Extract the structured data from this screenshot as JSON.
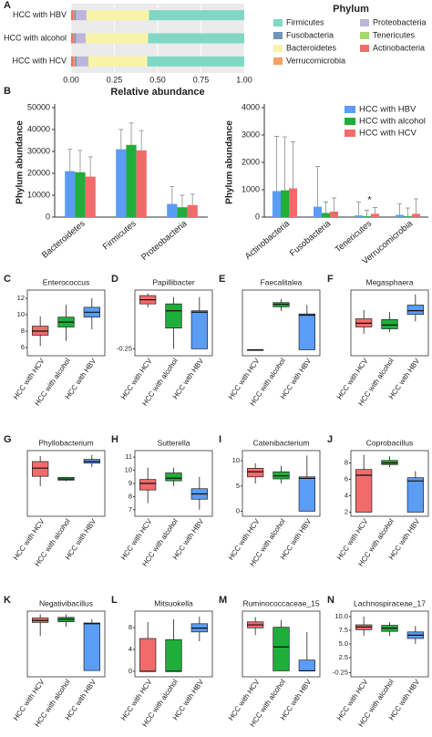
{
  "chart_data": [
    {
      "type": "bar",
      "stacked": true,
      "orientation": "horizontal",
      "panel": "A",
      "categories": [
        "HCC with HBV",
        "HCC with alcohol",
        "HCC with HCV"
      ],
      "series": [
        {
          "name": "Firmicutes",
          "color": "#7fd8c3",
          "values": [
            0.55,
            0.555,
            0.56
          ]
        },
        {
          "name": "Fusobacteria",
          "color": "#6f97b8",
          "values": [
            0.01,
            0.01,
            0.01
          ]
        },
        {
          "name": "Bacteroidetes",
          "color": "#f7f4a8",
          "values": [
            0.36,
            0.36,
            0.34
          ]
        },
        {
          "name": "Verrucomicrobia",
          "color": "#f4a261",
          "values": [
            0.005,
            0.005,
            0.01
          ]
        },
        {
          "name": "Proteobacteria",
          "color": "#bdb5db",
          "values": [
            0.06,
            0.055,
            0.065
          ]
        },
        {
          "name": "Tenericutes",
          "color": "#a6d96a",
          "values": [
            0.002,
            0.002,
            0.002
          ]
        },
        {
          "name": "Actinobacteria",
          "color": "#ef6f6c",
          "values": [
            0.013,
            0.013,
            0.013
          ]
        }
      ],
      "xlim": [
        0,
        1
      ],
      "xticks": [
        {
          "value": 0,
          "label": "0.00"
        },
        {
          "value": 0.25,
          "label": "0.25"
        },
        {
          "value": 0.5,
          "label": "0.50"
        },
        {
          "value": 0.75,
          "label": "0.75"
        },
        {
          "value": 1,
          "label": "1.00"
        }
      ],
      "xlabel": "Relative abundance",
      "legend_title": "Phylum",
      "background": "#ebebeb"
    },
    {
      "type": "bar",
      "panel": "B",
      "categories": [
        "Bacteroidetes",
        "Firmicutes",
        "Proteobacteria"
      ],
      "series": [
        {
          "name": "HCC with HBV",
          "color": "#5b9cf4",
          "values": [
            21000,
            31000,
            6000
          ],
          "errors": [
            10000,
            9000,
            8000
          ]
        },
        {
          "name": "HCC with alcohol",
          "color": "#1fae3a",
          "values": [
            20500,
            33000,
            4500
          ],
          "errors": [
            10000,
            10000,
            5500
          ]
        },
        {
          "name": "HCC with HCV",
          "color": "#f26b6b",
          "values": [
            18500,
            30500,
            5500
          ],
          "errors": [
            9000,
            9000,
            5000
          ]
        }
      ],
      "ylim": [
        0,
        50000
      ],
      "yticks": [
        0,
        10000,
        20000,
        30000,
        40000,
        50000
      ],
      "ylabel": "Phylum abundance"
    },
    {
      "type": "bar",
      "categories": [
        "Actinobacteria",
        "Fusobacteria",
        "Tenericutes",
        "Verrucomicrobia"
      ],
      "series": [
        {
          "name": "HCC with HBV",
          "color": "#5b9cf4",
          "values": [
            950,
            380,
            60,
            80
          ],
          "errors": [
            2000,
            1470,
            490,
            400
          ]
        },
        {
          "name": "HCC with alcohol",
          "color": "#1fae3a",
          "values": [
            980,
            150,
            30,
            30
          ],
          "errors": [
            1950,
            400,
            220,
            300
          ]
        },
        {
          "name": "HCC with HCV",
          "color": "#f26b6b",
          "values": [
            1050,
            200,
            120,
            120
          ],
          "errors": [
            1700,
            500,
            230,
            550
          ]
        }
      ],
      "ylim": [
        0,
        4000
      ],
      "yticks": [
        0,
        1000,
        2000,
        3000,
        4000
      ],
      "ylabel": "Phylum abundance",
      "legend": "upper right",
      "annotations": [
        {
          "text": "*"
        }
      ]
    },
    {
      "type": "box",
      "panel": "C",
      "title": "Enterococcus",
      "categories": [
        "HCC with HCV",
        "HCC with alcohol",
        "HCC with HBV"
      ],
      "colors": [
        "#f26b6b",
        "#1fae3a",
        "#5b9cf4"
      ],
      "boxes": [
        {
          "min": 6.2,
          "q1": 7.5,
          "median": 8.0,
          "q3": 8.6,
          "max": 9.8
        },
        {
          "min": 6.8,
          "q1": 8.5,
          "median": 9.1,
          "q3": 9.7,
          "max": 11.2
        },
        {
          "min": 8.2,
          "q1": 9.7,
          "median": 10.3,
          "q3": 10.9,
          "max": 12.0
        }
      ],
      "ylim": [
        5,
        13
      ],
      "yticks": [
        6,
        8,
        10,
        12
      ]
    },
    {
      "type": "box",
      "panel": "D",
      "title": "Papillibacter",
      "categories": [
        "HCC with HCV",
        "HCC with alcohol",
        "HCC with HBV"
      ],
      "colors": [
        "#f26b6b",
        "#1fae3a",
        "#5b9cf4"
      ],
      "boxes": [
        {
          "min": 0.35,
          "q1": 0.4,
          "median": 0.46,
          "q3": 0.52,
          "max": 0.55
        },
        {
          "min": -0.25,
          "q1": 0.05,
          "median": 0.3,
          "q3": 0.4,
          "max": 0.5
        },
        {
          "min": -0.25,
          "q1": -0.25,
          "median": 0.28,
          "q3": 0.3,
          "max": 0.5
        }
      ],
      "ylim": [
        -0.35,
        0.6
      ],
      "yticks": [
        -0.25
      ]
    },
    {
      "type": "box",
      "panel": "E",
      "title": "Faecalitalea",
      "categories": [
        "HCC with HCV",
        "HCC with alcohol",
        "HCC with HBV"
      ],
      "colors": [
        "#f26b6b",
        "#1fae3a",
        "#5b9cf4"
      ],
      "boxes": [
        {
          "min": 0,
          "q1": 0,
          "median": 0,
          "q3": 0,
          "max": 0
        },
        {
          "min": 6.5,
          "q1": 7.2,
          "median": 7.6,
          "q3": 7.9,
          "max": 8.5
        },
        {
          "min": 0,
          "q1": 0,
          "median": 5.8,
          "q3": 6.0,
          "max": 7.5
        }
      ],
      "ylim": [
        -1,
        10
      ]
    },
    {
      "type": "box",
      "panel": "F",
      "title": "Megasphaera",
      "categories": [
        "HCC with HCV",
        "HCC with alcohol",
        "HCC with HBV"
      ],
      "colors": [
        "#f26b6b",
        "#1fae3a",
        "#5b9cf4"
      ],
      "boxes": [
        {
          "min": 5.5,
          "q1": 6.6,
          "median": 7.2,
          "q3": 7.9,
          "max": 9.3
        },
        {
          "min": 5.8,
          "q1": 6.3,
          "median": 6.9,
          "q3": 7.8,
          "max": 9.0
        },
        {
          "min": 7.5,
          "q1": 8.6,
          "median": 9.2,
          "q3": 10.1,
          "max": 11.8
        }
      ],
      "ylim": [
        2,
        12.5
      ]
    },
    {
      "type": "box",
      "panel": "G",
      "title": "Phyllobacterium",
      "categories": [
        "HCC with HCV",
        "HCC with alcohol",
        "HCC with HBV"
      ],
      "colors": [
        "#f26b6b",
        "#1fae3a",
        "#5b9cf4"
      ],
      "boxes": [
        {
          "min": 5.5,
          "q1": 7.3,
          "median": 8.8,
          "q3": 10.0,
          "max": 11.0
        },
        {
          "min": 6.4,
          "q1": 6.6,
          "median": 6.8,
          "q3": 7.1,
          "max": 7.2
        },
        {
          "min": 9.0,
          "q1": 9.7,
          "median": 10.0,
          "q3": 10.4,
          "max": 11.2
        }
      ],
      "ylim": [
        0,
        12
      ]
    },
    {
      "type": "box",
      "panel": "H",
      "title": "Sutterella",
      "categories": [
        "HCC with HCV",
        "HCC with alcohol",
        "HCC with HBV"
      ],
      "colors": [
        "#f26b6b",
        "#1fae3a",
        "#5b9cf4"
      ],
      "boxes": [
        {
          "min": 7.5,
          "q1": 8.5,
          "median": 9.0,
          "q3": 9.3,
          "max": 10.2
        },
        {
          "min": 8.8,
          "q1": 9.2,
          "median": 9.4,
          "q3": 9.8,
          "max": 10.2
        },
        {
          "min": 7.0,
          "q1": 7.8,
          "median": 8.2,
          "q3": 8.6,
          "max": 9.5
        }
      ],
      "ylim": [
        6.5,
        11.5
      ],
      "yticks": [
        7,
        8,
        9,
        10,
        11
      ]
    },
    {
      "type": "box",
      "panel": "I",
      "title": "Catenibacterium",
      "categories": [
        "HCC with HCV",
        "HCC with alcohol",
        "HCC with HBV"
      ],
      "colors": [
        "#f26b6b",
        "#1fae3a",
        "#5b9cf4"
      ],
      "boxes": [
        {
          "min": 5.5,
          "q1": 6.8,
          "median": 7.8,
          "q3": 8.5,
          "max": 9.5
        },
        {
          "min": 5.5,
          "q1": 6.4,
          "median": 7.0,
          "q3": 7.8,
          "max": 9.0
        },
        {
          "min": 0,
          "q1": 0,
          "median": 6.5,
          "q3": 6.8,
          "max": 11.0
        }
      ],
      "ylim": [
        -1,
        12
      ],
      "yticks": [
        0,
        5,
        10
      ]
    },
    {
      "type": "box",
      "panel": "J",
      "title": "Coprobacillus",
      "categories": [
        "HCC with HCV",
        "HCC with alcohol",
        "HCC with HBV"
      ],
      "colors": [
        "#f26b6b",
        "#1fae3a",
        "#5b9cf4"
      ],
      "boxes": [
        {
          "min": 2,
          "q1": 2,
          "median": 6.5,
          "q3": 7.2,
          "max": 9.0
        },
        {
          "min": 7.5,
          "q1": 7.8,
          "median": 8.0,
          "q3": 8.3,
          "max": 8.8
        },
        {
          "min": 2,
          "q1": 2,
          "median": 5.8,
          "q3": 6.2,
          "max": 7.0
        }
      ],
      "ylim": [
        1.5,
        9.5
      ],
      "yticks": [
        2,
        4,
        6,
        8
      ]
    },
    {
      "type": "box",
      "panel": "K",
      "title": "Negativibacillus",
      "categories": [
        "HCC with HCV",
        "HCC with alcohol",
        "HCC with HBV"
      ],
      "colors": [
        "#f26b6b",
        "#1fae3a",
        "#5b9cf4"
      ],
      "boxes": [
        {
          "min": 5.5,
          "q1": 7.7,
          "median": 8.0,
          "q3": 8.4,
          "max": 9.0
        },
        {
          "min": 7.0,
          "q1": 7.8,
          "median": 8.2,
          "q3": 8.5,
          "max": 9.0
        },
        {
          "min": 0,
          "q1": 0,
          "median": 7.5,
          "q3": 7.6,
          "max": 8.2
        }
      ],
      "ylim": [
        -1,
        9.5
      ]
    },
    {
      "type": "box",
      "panel": "L",
      "title": "Mitsuokella",
      "categories": [
        "HCC with HCV",
        "HCC with alcohol",
        "HCC with HBV"
      ],
      "colors": [
        "#f26b6b",
        "#1fae3a",
        "#5b9cf4"
      ],
      "boxes": [
        {
          "min": 0,
          "q1": 0,
          "median": 0,
          "q3": 6.0,
          "max": 9.0
        },
        {
          "min": 0,
          "q1": 0,
          "median": 0,
          "q3": 5.8,
          "max": 9.5
        },
        {
          "min": 5.5,
          "q1": 7.2,
          "median": 7.9,
          "q3": 8.7,
          "max": 10.0
        }
      ],
      "ylim": [
        -1,
        11
      ],
      "yticks": [
        0,
        4,
        8
      ]
    },
    {
      "type": "box",
      "panel": "M",
      "title": "Ruminococcaceae_15",
      "categories": [
        "HCC with HCV",
        "HCC with alcohol",
        "HCC with HBV"
      ],
      "colors": [
        "#f26b6b",
        "#1fae3a",
        "#5b9cf4"
      ],
      "boxes": [
        {
          "min": 6.0,
          "q1": 7.2,
          "median": 7.7,
          "q3": 8.2,
          "max": 9.0
        },
        {
          "min": 0,
          "q1": 0,
          "median": 4.0,
          "q3": 7.3,
          "max": 8.5
        },
        {
          "min": 0,
          "q1": 0,
          "median": 0,
          "q3": 1.8,
          "max": 6.5
        }
      ],
      "ylim": [
        -1,
        10
      ]
    },
    {
      "type": "box",
      "panel": "N",
      "title": "Lachnospiraceae_17",
      "categories": [
        "HCC with HCV",
        "HCC with alcohol",
        "HCC with HBV"
      ],
      "colors": [
        "#f26b6b",
        "#1fae3a",
        "#5b9cf4"
      ],
      "boxes": [
        {
          "min": 6.5,
          "q1": 7.6,
          "median": 8.1,
          "q3": 8.5,
          "max": 10.0
        },
        {
          "min": 6.5,
          "q1": 7.3,
          "median": 7.9,
          "q3": 8.4,
          "max": 9.0
        },
        {
          "min": 5.0,
          "q1": 6.0,
          "median": 6.6,
          "q3": 7.2,
          "max": 8.3
        }
      ],
      "ylim": [
        -1,
        11
      ],
      "yticks": [
        -0.25,
        2.5,
        {
          "value": 5,
          "label": "5.0"
        },
        7.5,
        {
          "value": 10,
          "label": "10.0"
        }
      ]
    }
  ]
}
